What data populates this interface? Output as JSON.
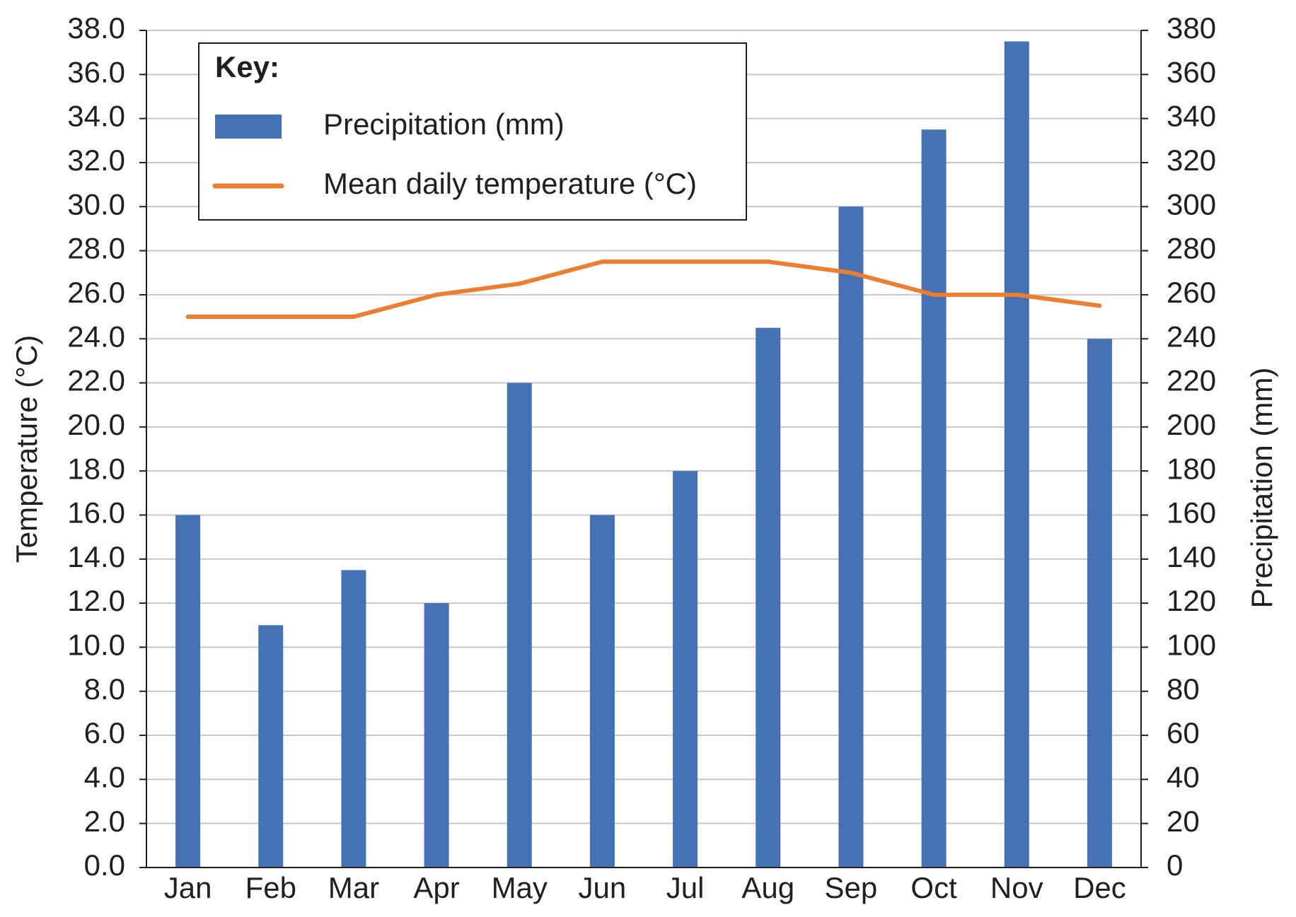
{
  "chart_data": {
    "type": "bar-line",
    "categories": [
      "Jan",
      "Feb",
      "Mar",
      "Apr",
      "May",
      "Jun",
      "Jul",
      "Aug",
      "Sep",
      "Oct",
      "Nov",
      "Dec"
    ],
    "series": [
      {
        "name": "Precipitation (mm)",
        "type": "bar",
        "axis": "y2",
        "color": "#4472b4",
        "values": [
          160,
          110,
          135,
          120,
          220,
          160,
          180,
          245,
          300,
          335,
          375,
          240
        ]
      },
      {
        "name": "Mean daily temperature (°C)",
        "type": "line",
        "axis": "y",
        "color": "#ed7d31",
        "values": [
          25,
          25,
          25,
          26,
          26.5,
          27.5,
          27.5,
          27.5,
          27,
          26,
          26,
          25.5
        ]
      }
    ],
    "y_label": "Temperature (°C)",
    "y2_label": "Precipitation (mm)",
    "legend_title": "Key:",
    "legend": "top-left",
    "grid": true,
    "ylim": [
      0,
      38
    ],
    "yticks": [
      {
        "value": 0,
        "label": "0.0"
      },
      {
        "value": 2,
        "label": "2.0"
      },
      {
        "value": 4,
        "label": "4.0"
      },
      {
        "value": 6,
        "label": "6.0"
      },
      {
        "value": 8,
        "label": "8.0"
      },
      {
        "value": 10,
        "label": "10.0"
      },
      {
        "value": 12,
        "label": "12.0"
      },
      {
        "value": 14,
        "label": "14.0"
      },
      {
        "value": 16,
        "label": "16.0"
      },
      {
        "value": 18,
        "label": "18.0"
      },
      {
        "value": 20,
        "label": "20.0"
      },
      {
        "value": 22,
        "label": "22.0"
      },
      {
        "value": 24,
        "label": "24.0"
      },
      {
        "value": 26,
        "label": "26.0"
      },
      {
        "value": 28,
        "label": "28.0"
      },
      {
        "value": 30,
        "label": "30.0"
      },
      {
        "value": 32,
        "label": "32.0"
      },
      {
        "value": 34,
        "label": "34.0"
      },
      {
        "value": 36,
        "label": "36.0"
      },
      {
        "value": 38,
        "label": "38.0"
      }
    ],
    "y2lim": [
      0,
      380
    ],
    "y2ticks": [
      0,
      20,
      40,
      60,
      80,
      100,
      120,
      140,
      160,
      180,
      200,
      220,
      240,
      260,
      280,
      300,
      320,
      340,
      360,
      380
    ]
  }
}
